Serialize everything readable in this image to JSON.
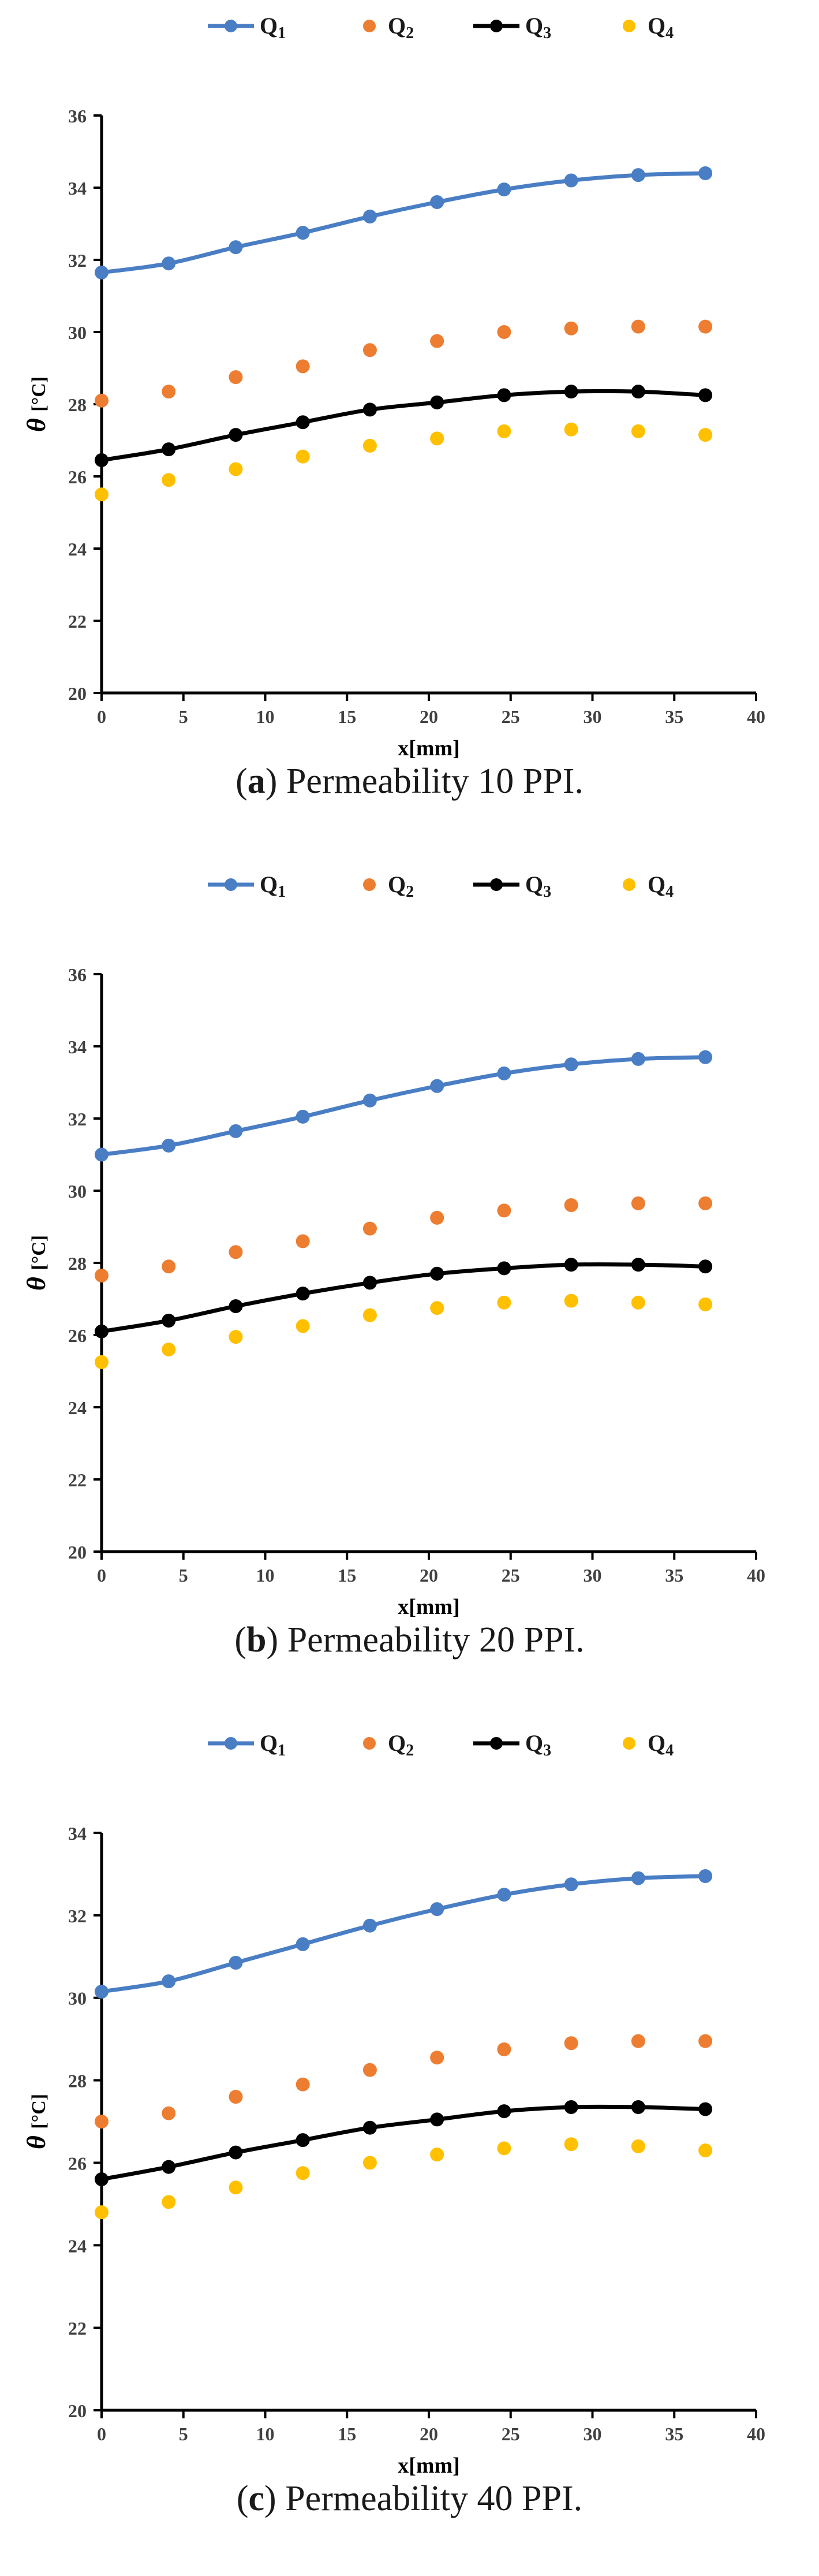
{
  "colors": {
    "q1": "#4a7ec4",
    "q2": "#ed7d31",
    "q3": "#000000",
    "q4": "#ffc000",
    "axis": "#000000",
    "tick_text": "#404040"
  },
  "legend": {
    "q1": "Q",
    "q2": "Q",
    "q3": "Q",
    "q4": "Q",
    "sub1": "1",
    "sub2": "2",
    "sub3": "3",
    "sub4": "4"
  },
  "chart_data": [
    {
      "type": "line",
      "caption_letter": "a",
      "caption_text": "Permeability 10 PPI.",
      "xlabel": "x[mm]",
      "ylabel_symbol": "θ",
      "ylabel_unit": "[°C]",
      "xlim": [
        0,
        40
      ],
      "ylim": [
        20,
        36
      ],
      "xticks": [
        0,
        5,
        10,
        15,
        20,
        25,
        30,
        35,
        40
      ],
      "yticks": [
        20,
        22,
        24,
        26,
        28,
        30,
        32,
        34,
        36
      ],
      "x": [
        0,
        4.1,
        8.2,
        12.3,
        16.4,
        20.5,
        24.6,
        28.7,
        32.8,
        36.9
      ],
      "series": [
        {
          "name": "Q1",
          "style": "line-markers",
          "values": [
            31.65,
            31.9,
            32.35,
            32.75,
            33.2,
            33.6,
            33.95,
            34.2,
            34.35,
            34.4
          ]
        },
        {
          "name": "Q2",
          "style": "markers",
          "values": [
            28.1,
            28.35,
            28.75,
            29.05,
            29.5,
            29.75,
            30.0,
            30.1,
            30.15,
            30.15
          ]
        },
        {
          "name": "Q3",
          "style": "line-markers",
          "values": [
            26.45,
            26.75,
            27.15,
            27.5,
            27.85,
            28.05,
            28.25,
            28.35,
            28.35,
            28.25
          ]
        },
        {
          "name": "Q4",
          "style": "markers",
          "values": [
            25.5,
            25.9,
            26.2,
            26.55,
            26.85,
            27.05,
            27.25,
            27.3,
            27.25,
            27.15
          ]
        }
      ]
    },
    {
      "type": "line",
      "caption_letter": "b",
      "caption_text": "Permeability 20 PPI.",
      "xlabel": "x[mm]",
      "ylabel_symbol": "θ",
      "ylabel_unit": "[°C]",
      "xlim": [
        0,
        40
      ],
      "ylim": [
        20,
        36
      ],
      "xticks": [
        0,
        5,
        10,
        15,
        20,
        25,
        30,
        35,
        40
      ],
      "yticks": [
        20,
        22,
        24,
        26,
        28,
        30,
        32,
        34,
        36
      ],
      "x": [
        0,
        4.1,
        8.2,
        12.3,
        16.4,
        20.5,
        24.6,
        28.7,
        32.8,
        36.9
      ],
      "series": [
        {
          "name": "Q1",
          "style": "line-markers",
          "values": [
            31.0,
            31.25,
            31.65,
            32.05,
            32.5,
            32.9,
            33.25,
            33.5,
            33.65,
            33.7
          ]
        },
        {
          "name": "Q2",
          "style": "markers",
          "values": [
            27.65,
            27.9,
            28.3,
            28.6,
            28.95,
            29.25,
            29.45,
            29.6,
            29.65,
            29.65
          ]
        },
        {
          "name": "Q3",
          "style": "line-markers",
          "values": [
            26.1,
            26.4,
            26.8,
            27.15,
            27.45,
            27.7,
            27.85,
            27.95,
            27.95,
            27.9
          ]
        },
        {
          "name": "Q4",
          "style": "markers",
          "values": [
            25.25,
            25.6,
            25.95,
            26.25,
            26.55,
            26.75,
            26.9,
            26.95,
            26.9,
            26.85
          ]
        }
      ]
    },
    {
      "type": "line",
      "caption_letter": "c",
      "caption_text": "Permeability 40 PPI.",
      "xlabel": "x[mm]",
      "ylabel_symbol": "θ",
      "ylabel_unit": "[°C]",
      "xlim": [
        0,
        40
      ],
      "ylim": [
        20,
        34
      ],
      "xticks": [
        0,
        5,
        10,
        15,
        20,
        25,
        30,
        35,
        40
      ],
      "yticks": [
        20,
        22,
        24,
        26,
        28,
        30,
        32,
        34
      ],
      "x": [
        0,
        4.1,
        8.2,
        12.3,
        16.4,
        20.5,
        24.6,
        28.7,
        32.8,
        36.9
      ],
      "series": [
        {
          "name": "Q1",
          "style": "line-markers",
          "values": [
            30.15,
            30.4,
            30.85,
            31.3,
            31.75,
            32.15,
            32.5,
            32.75,
            32.9,
            32.95
          ]
        },
        {
          "name": "Q2",
          "style": "markers",
          "values": [
            27.0,
            27.2,
            27.6,
            27.9,
            28.25,
            28.55,
            28.75,
            28.9,
            28.95,
            28.95
          ]
        },
        {
          "name": "Q3",
          "style": "line-markers",
          "values": [
            25.6,
            25.9,
            26.25,
            26.55,
            26.85,
            27.05,
            27.25,
            27.35,
            27.35,
            27.3
          ]
        },
        {
          "name": "Q4",
          "style": "markers",
          "values": [
            24.8,
            25.05,
            25.4,
            25.75,
            26.0,
            26.2,
            26.35,
            26.45,
            26.4,
            26.3
          ]
        }
      ]
    }
  ]
}
